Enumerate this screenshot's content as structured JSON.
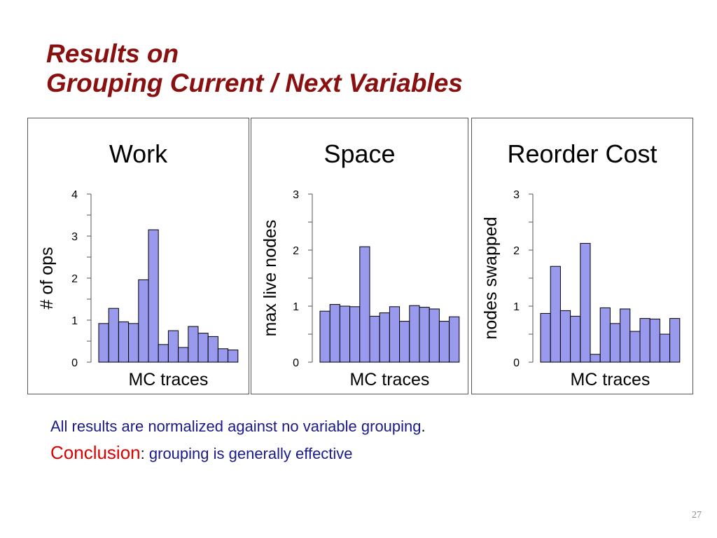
{
  "slide": {
    "title_line1": "Results on",
    "title_line2": "Grouping Current / Next Variables",
    "note": "All results are normalized against no variable grouping",
    "note_end": ".",
    "conclusion_label": "Conclusion",
    "conclusion_colon": ":",
    "conclusion_text": " grouping is generally effective",
    "page_number": "27"
  },
  "chart_data": [
    {
      "type": "bar",
      "title": "Work",
      "xlabel": "MC traces",
      "ylabel": "# of ops",
      "ylim": [
        0,
        4
      ],
      "yticks": [
        0,
        1,
        2,
        3,
        4
      ],
      "grid": false,
      "bar_color": "#9999ee",
      "values": [
        0.92,
        1.28,
        0.96,
        0.92,
        1.96,
        3.15,
        0.42,
        0.75,
        0.35,
        0.85,
        0.69,
        0.61,
        0.32,
        0.29
      ]
    },
    {
      "type": "bar",
      "title": "Space",
      "xlabel": "MC traces",
      "ylabel": "max live nodes",
      "ylim": [
        0,
        3
      ],
      "yticks": [
        0,
        1,
        2,
        3
      ],
      "grid": false,
      "bar_color": "#9999ee",
      "values": [
        0.91,
        1.03,
        1.0,
        0.99,
        2.06,
        0.82,
        0.88,
        0.99,
        0.73,
        1.01,
        0.98,
        0.95,
        0.73,
        0.81
      ]
    },
    {
      "type": "bar",
      "title": "Reorder Cost",
      "xlabel": "MC traces",
      "ylabel": "nodes swapped",
      "ylim": [
        0,
        3
      ],
      "yticks": [
        0,
        1,
        2,
        3
      ],
      "grid": false,
      "bar_color": "#9999ee",
      "values": [
        0.87,
        1.71,
        0.92,
        0.82,
        2.12,
        0.14,
        0.97,
        0.69,
        0.95,
        0.55,
        0.78,
        0.77,
        0.5,
        0.78
      ]
    }
  ]
}
